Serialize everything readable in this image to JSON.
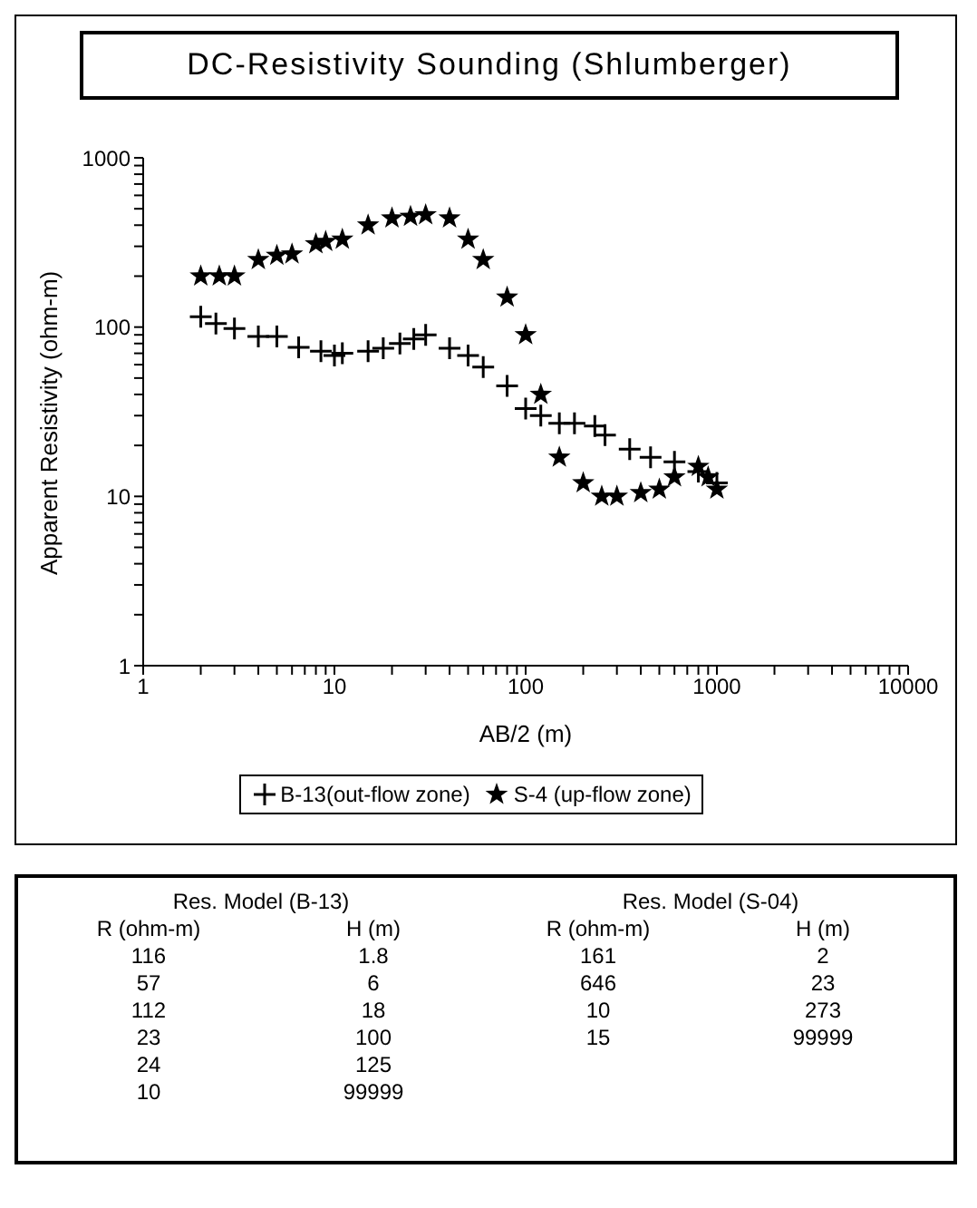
{
  "chart_data": {
    "type": "scatter",
    "title": "DC-Resistivity Sounding (Shlumberger)",
    "xlabel": "AB/2 (m)",
    "ylabel": "Apparent Resistivity (ohm-m)",
    "log": "xy",
    "xlim": [
      1,
      10000
    ],
    "ylim": [
      1,
      1000
    ],
    "xticks": [
      1,
      {
        "value": 2,
        "label": null
      },
      {
        "value": 3,
        "label": null
      },
      {
        "value": 4,
        "label": null
      },
      {
        "value": 5,
        "label": null
      },
      {
        "value": 6,
        "label": null
      },
      {
        "value": 7,
        "label": null
      },
      {
        "value": 8,
        "label": null
      },
      {
        "value": 9,
        "label": null
      },
      10,
      {
        "value": 20,
        "label": null
      },
      {
        "value": 30,
        "label": null
      },
      {
        "value": 40,
        "label": null
      },
      {
        "value": 50,
        "label": null
      },
      {
        "value": 60,
        "label": null
      },
      {
        "value": 70,
        "label": null
      },
      {
        "value": 80,
        "label": null
      },
      {
        "value": 90,
        "label": null
      },
      100,
      {
        "value": 200,
        "label": null
      },
      {
        "value": 300,
        "label": null
      },
      {
        "value": 400,
        "label": null
      },
      {
        "value": 500,
        "label": null
      },
      {
        "value": 600,
        "label": null
      },
      {
        "value": 700,
        "label": null
      },
      {
        "value": 800,
        "label": null
      },
      {
        "value": 900,
        "label": null
      },
      1000,
      {
        "value": 2000,
        "label": null
      },
      {
        "value": 3000,
        "label": null
      },
      {
        "value": 4000,
        "label": null
      },
      {
        "value": 5000,
        "label": null
      },
      {
        "value": 6000,
        "label": null
      },
      {
        "value": 7000,
        "label": null
      },
      {
        "value": 8000,
        "label": null
      },
      {
        "value": 9000,
        "label": null
      },
      10000
    ],
    "yticks": [
      1,
      {
        "value": 2,
        "label": null
      },
      {
        "value": 3,
        "label": null
      },
      {
        "value": 4,
        "label": null
      },
      {
        "value": 5,
        "label": null
      },
      {
        "value": 6,
        "label": null
      },
      {
        "value": 7,
        "label": null
      },
      {
        "value": 8,
        "label": null
      },
      {
        "value": 9,
        "label": null
      },
      10,
      {
        "value": 20,
        "label": null
      },
      {
        "value": 30,
        "label": null
      },
      {
        "value": 40,
        "label": null
      },
      {
        "value": 50,
        "label": null
      },
      {
        "value": 60,
        "label": null
      },
      {
        "value": 70,
        "label": null
      },
      {
        "value": 80,
        "label": null
      },
      {
        "value": 90,
        "label": null
      },
      100,
      {
        "value": 200,
        "label": null
      },
      {
        "value": 300,
        "label": null
      },
      {
        "value": 400,
        "label": null
      },
      {
        "value": 500,
        "label": null
      },
      {
        "value": 600,
        "label": null
      },
      {
        "value": 700,
        "label": null
      },
      {
        "value": 800,
        "label": null
      },
      {
        "value": 900,
        "label": null
      },
      1000
    ],
    "grid": false,
    "legend": "bottom",
    "series": [
      {
        "name": "B-13(out-flow zone)",
        "color": "#000000",
        "marker": "cross",
        "x": [
          2,
          2.4,
          3,
          4,
          5,
          6.5,
          8.5,
          10,
          11,
          15,
          18,
          22,
          26,
          30,
          40,
          50,
          60,
          80,
          100,
          120,
          150,
          180,
          230,
          260,
          350,
          450,
          600,
          800,
          1000
        ],
        "values": [
          115,
          105,
          98,
          88,
          88,
          76,
          72,
          68,
          70,
          72,
          75,
          80,
          85,
          90,
          75,
          68,
          58,
          45,
          33,
          30,
          27,
          27,
          26,
          23,
          19,
          17,
          16,
          14,
          12
        ]
      },
      {
        "name": "S-4 (up-flow zone)",
        "color": "#000000",
        "marker": "star",
        "x": [
          2,
          2.5,
          3,
          4,
          5,
          6,
          8,
          9,
          11,
          15,
          20,
          25,
          30,
          40,
          50,
          60,
          80,
          100,
          120,
          150,
          200,
          250,
          300,
          400,
          500,
          600,
          800,
          900,
          1000
        ],
        "values": [
          200,
          200,
          200,
          250,
          265,
          270,
          310,
          320,
          330,
          400,
          440,
          450,
          460,
          440,
          330,
          250,
          150,
          90,
          40,
          17,
          12,
          10,
          10,
          10.5,
          11,
          13,
          15,
          13,
          11
        ]
      }
    ],
    "annotations": [
      "Res. Model (B-13)",
      "Res. Model (S-04)",
      "R (ohm-m)",
      "H (m)",
      "R (ohm-m)",
      "H (m)",
      "116",
      "1.8",
      "161",
      "2",
      "57",
      "6",
      "646",
      "23",
      "112",
      "18",
      "10",
      "273",
      "23",
      "100",
      "15",
      "99999",
      "24",
      "125",
      "10",
      "99999"
    ]
  }
}
